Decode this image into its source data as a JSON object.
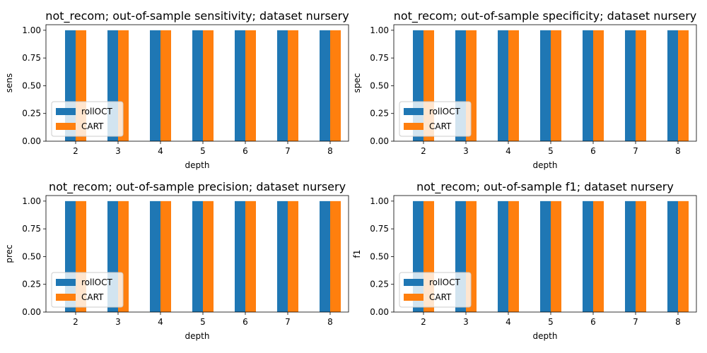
{
  "colors": {
    "rollOCT": "#1f77b4",
    "CART": "#ff7f0e"
  },
  "chart_data": [
    {
      "type": "bar",
      "title": "not_recom; out-of-sample sensitivity; dataset nursery",
      "xlabel": "depth",
      "ylabel": "sens",
      "categories": [
        "2",
        "3",
        "4",
        "5",
        "6",
        "7",
        "8"
      ],
      "ylim": [
        0,
        1.05
      ],
      "yticks": [
        "0.00",
        "0.25",
        "0.50",
        "0.75",
        "1.00"
      ],
      "legend_position": "lower-left",
      "series": [
        {
          "name": "rollOCT",
          "values": [
            1,
            1,
            1,
            1,
            1,
            1,
            1
          ]
        },
        {
          "name": "CART",
          "values": [
            1,
            1,
            1,
            1,
            1,
            1,
            1
          ]
        }
      ]
    },
    {
      "type": "bar",
      "title": "not_recom; out-of-sample specificity; dataset nursery",
      "xlabel": "depth",
      "ylabel": "spec",
      "categories": [
        "2",
        "3",
        "4",
        "5",
        "6",
        "7",
        "8"
      ],
      "ylim": [
        0,
        1.05
      ],
      "yticks": [
        "0.00",
        "0.25",
        "0.50",
        "0.75",
        "1.00"
      ],
      "legend_position": "lower-left",
      "series": [
        {
          "name": "rollOCT",
          "values": [
            1,
            1,
            1,
            1,
            1,
            1,
            1
          ]
        },
        {
          "name": "CART",
          "values": [
            1,
            1,
            1,
            1,
            1,
            1,
            1
          ]
        }
      ]
    },
    {
      "type": "bar",
      "title": "not_recom; out-of-sample precision; dataset nursery",
      "xlabel": "depth",
      "ylabel": "prec",
      "categories": [
        "2",
        "3",
        "4",
        "5",
        "6",
        "7",
        "8"
      ],
      "ylim": [
        0,
        1.05
      ],
      "yticks": [
        "0.00",
        "0.25",
        "0.50",
        "0.75",
        "1.00"
      ],
      "legend_position": "lower-left",
      "series": [
        {
          "name": "rollOCT",
          "values": [
            1,
            1,
            1,
            1,
            1,
            1,
            1
          ]
        },
        {
          "name": "CART",
          "values": [
            1,
            1,
            1,
            1,
            1,
            1,
            1
          ]
        }
      ]
    },
    {
      "type": "bar",
      "title": "not_recom; out-of-sample f1; dataset nursery",
      "xlabel": "depth",
      "ylabel": "f1",
      "categories": [
        "2",
        "3",
        "4",
        "5",
        "6",
        "7",
        "8"
      ],
      "ylim": [
        0,
        1.05
      ],
      "yticks": [
        "0.00",
        "0.25",
        "0.50",
        "0.75",
        "1.00"
      ],
      "legend_position": "lower-left",
      "series": [
        {
          "name": "rollOCT",
          "values": [
            1,
            1,
            1,
            1,
            1,
            1,
            1
          ]
        },
        {
          "name": "CART",
          "values": [
            1,
            1,
            1,
            1,
            1,
            1,
            1
          ]
        }
      ]
    }
  ]
}
